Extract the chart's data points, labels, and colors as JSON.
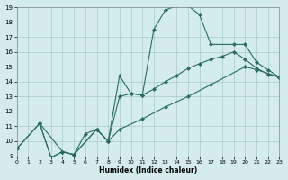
{
  "xlabel": "Humidex (Indice chaleur)",
  "bg_color": "#d4ecee",
  "grid_color": "#a8c8ca",
  "line_color": "#2a6b60",
  "xlim": [
    0,
    23
  ],
  "ylim": [
    9,
    19
  ],
  "xticks": [
    0,
    1,
    2,
    3,
    4,
    5,
    6,
    7,
    8,
    9,
    10,
    11,
    12,
    13,
    14,
    15,
    16,
    17,
    18,
    19,
    20,
    21,
    22,
    23
  ],
  "yticks": [
    9,
    10,
    11,
    12,
    13,
    14,
    15,
    16,
    17,
    18,
    19
  ],
  "curve1_x": [
    0,
    2,
    3,
    4,
    5,
    6,
    7,
    8,
    9,
    10,
    11,
    12,
    13,
    14,
    15,
    16,
    17,
    19,
    20,
    21,
    22,
    23
  ],
  "curve1_y": [
    9.5,
    11.2,
    8.9,
    9.3,
    9.1,
    10.5,
    10.8,
    10.0,
    14.4,
    13.2,
    13.1,
    17.5,
    18.8,
    19.1,
    19.1,
    18.5,
    16.5,
    16.5,
    16.5,
    15.3,
    14.8,
    14.3
  ],
  "curve2_x": [
    0,
    2,
    4,
    5,
    7,
    8,
    9,
    11,
    13,
    15,
    17,
    20,
    21,
    23
  ],
  "curve2_y": [
    9.5,
    11.2,
    9.3,
    9.1,
    10.8,
    10.0,
    10.8,
    11.5,
    12.3,
    13.0,
    13.8,
    15.0,
    14.8,
    14.3
  ],
  "curve3_x": [
    2,
    3,
    4,
    5,
    7,
    8,
    9,
    10,
    11,
    12,
    13,
    14,
    15,
    16,
    17,
    18,
    19,
    20,
    21,
    22,
    23
  ],
  "curve3_y": [
    11.2,
    8.9,
    9.3,
    9.1,
    10.8,
    10.0,
    13.0,
    13.2,
    13.1,
    13.5,
    14.0,
    14.4,
    14.9,
    15.2,
    15.5,
    15.7,
    16.0,
    15.5,
    14.9,
    14.5,
    14.3
  ]
}
